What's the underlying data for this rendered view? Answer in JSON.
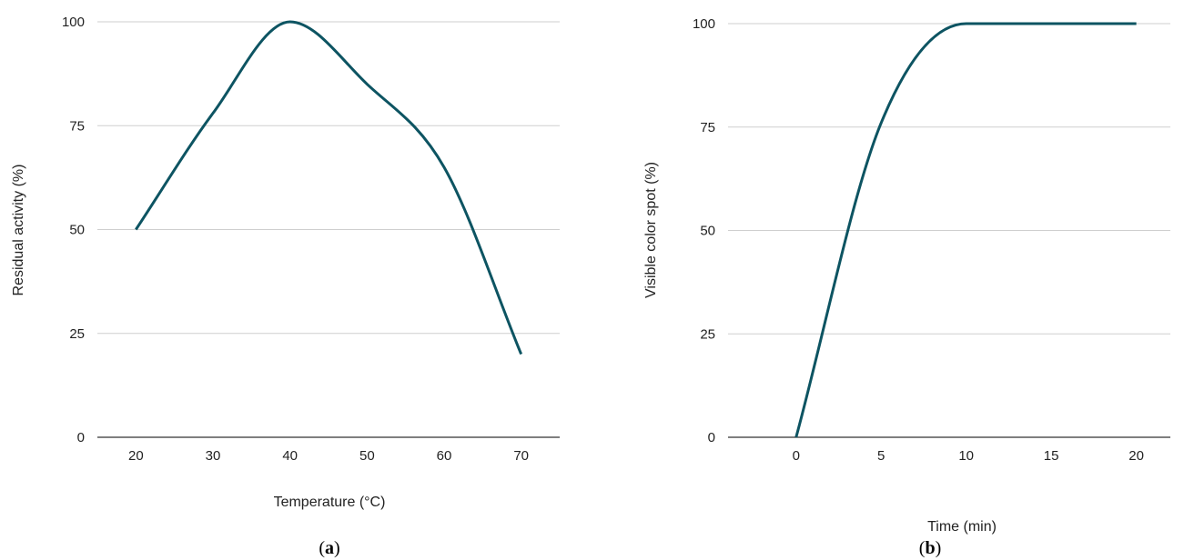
{
  "chart_data": [
    {
      "type": "line",
      "panel_label": "a",
      "xlabel": "Temperature (°C)",
      "ylabel": "Residual activity (%)",
      "xlim": [
        15,
        75
      ],
      "ylim": [
        0,
        100
      ],
      "x_ticks": [
        20,
        30,
        40,
        50,
        60,
        70
      ],
      "y_ticks": [
        0,
        25,
        50,
        75,
        100
      ],
      "grid": true,
      "line_color": "#0d5462",
      "series": [
        {
          "x": [
            20,
            30,
            40,
            50,
            60,
            70
          ],
          "y": [
            50,
            78,
            100,
            85,
            65,
            20
          ]
        }
      ]
    },
    {
      "type": "line",
      "panel_label": "b",
      "xlabel": "Time (min)",
      "ylabel": "Visible color spot (%)",
      "xlim": [
        -4,
        22
      ],
      "ylim": [
        0,
        100
      ],
      "x_ticks": [
        0,
        5,
        10,
        15,
        20
      ],
      "y_ticks": [
        0,
        25,
        50,
        75,
        100
      ],
      "grid": true,
      "line_color": "#0d5462",
      "series": [
        {
          "x": [
            0,
            5,
            10,
            15,
            20
          ],
          "y": [
            0,
            76,
            100,
            100,
            100
          ]
        }
      ]
    }
  ]
}
